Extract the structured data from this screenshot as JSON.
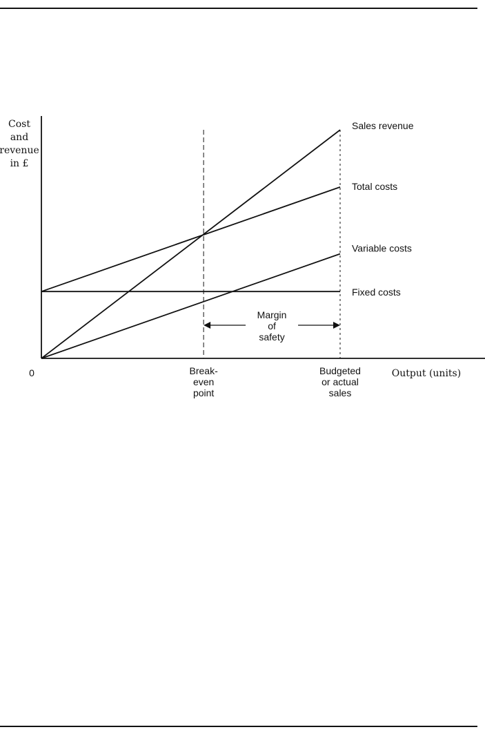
{
  "chart_data": {
    "type": "line",
    "title": "",
    "ylabel": [
      "Cost",
      "and",
      "revenue",
      "in £"
    ],
    "xlabel": "Output (units)",
    "origin_label": "0",
    "xlim": [
      0,
      100
    ],
    "ylim": [
      0,
      100
    ],
    "grid": false,
    "legend": "none",
    "series": [
      {
        "name": "Sales revenue",
        "x": [
          0,
          100
        ],
        "y": [
          0,
          94
        ]
      },
      {
        "name": "Total costs",
        "x": [
          0,
          100
        ],
        "y": [
          27.5,
          70.5
        ]
      },
      {
        "name": "Variable costs",
        "x": [
          0,
          100
        ],
        "y": [
          0,
          43
        ]
      },
      {
        "name": "Fixed costs",
        "x": [
          0,
          100
        ],
        "y": [
          27.5,
          27.5
        ]
      }
    ],
    "markers": [
      {
        "name": "break-even-point",
        "x": 54.3,
        "label": [
          "Break-",
          "even",
          "point"
        ]
      },
      {
        "name": "budgeted-sales",
        "x": 100,
        "label": [
          "Budgeted",
          "or actual",
          "sales"
        ]
      }
    ],
    "annotation": {
      "label": [
        "Margin",
        "of",
        "safety"
      ],
      "from": 54.3,
      "to": 100
    },
    "colors": {
      "lines": "#111111",
      "background": "#ffffff"
    }
  }
}
